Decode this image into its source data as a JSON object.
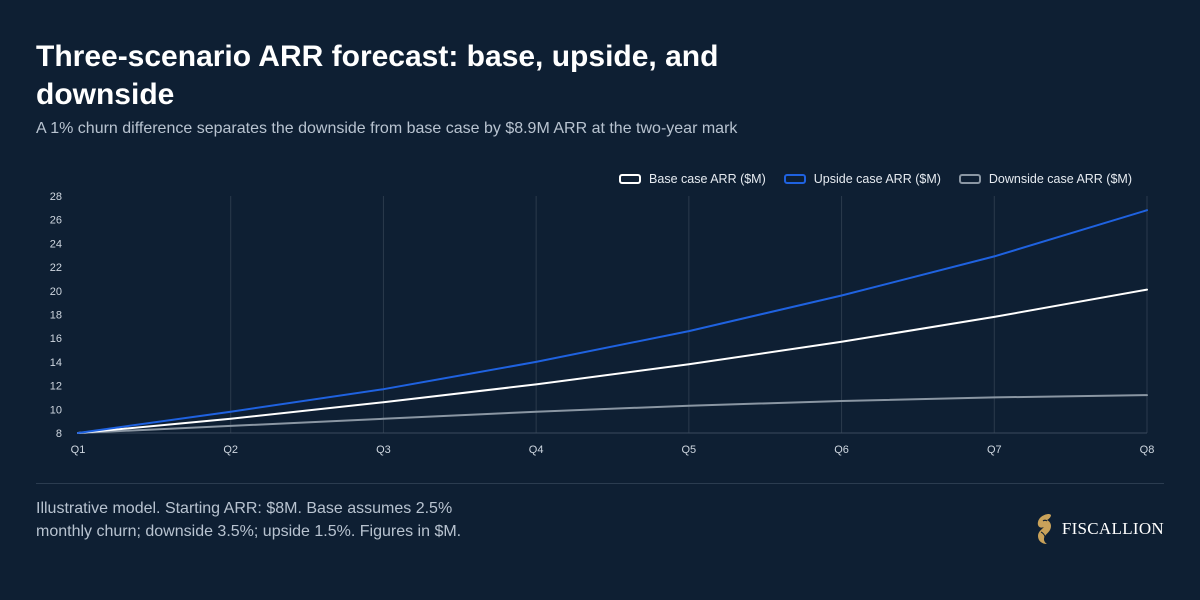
{
  "header": {
    "title": "Three-scenario ARR forecast: base, upside, and downside",
    "subtitle": "A 1% churn difference separates the downside from base case by $8.9M ARR at the two-year mark"
  },
  "footer": {
    "note": "Illustrative model. Starting ARR: $8M. Base assumes 2.5% monthly churn; downside 3.5%; upside 1.5%. Figures in $M.",
    "brand": "FISCALLION",
    "brand_icon": "horse-head-logo"
  },
  "colors": {
    "background": "#0e1f33",
    "base": "#ffffff",
    "upside": "#1f62e0",
    "downside": "#8a96a3",
    "grid": "#2a3a4c",
    "logo": "#c9a25a"
  },
  "chart_data": {
    "type": "line",
    "x": [
      "Q1",
      "Q2",
      "Q3",
      "Q4",
      "Q5",
      "Q6",
      "Q7",
      "Q8"
    ],
    "series": [
      {
        "name": "Base case ARR ($M)",
        "color": "#ffffff",
        "values": [
          8.0,
          9.2,
          10.6,
          12.1,
          13.8,
          15.7,
          17.8,
          20.1
        ]
      },
      {
        "name": "Upside case ARR ($M)",
        "color": "#1f62e0",
        "values": [
          8.0,
          9.8,
          11.7,
          14.0,
          16.6,
          19.6,
          22.9,
          26.8
        ]
      },
      {
        "name": "Downside case ARR ($M)",
        "color": "#8a96a3",
        "values": [
          8.0,
          8.6,
          9.2,
          9.8,
          10.3,
          10.7,
          11.0,
          11.2
        ]
      }
    ],
    "ylim": [
      8,
      28
    ],
    "yticks": [
      8,
      10,
      12,
      14,
      16,
      18,
      20,
      22,
      24,
      26,
      28
    ],
    "grid": "vertical",
    "legend_position": "top-right"
  }
}
